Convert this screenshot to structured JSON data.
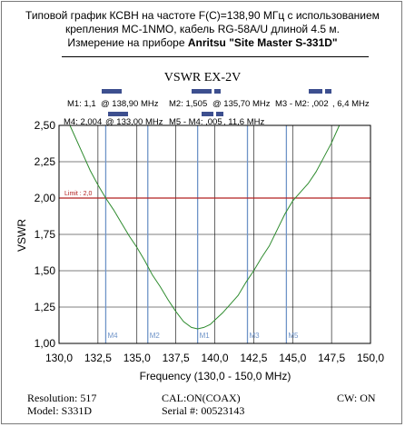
{
  "header": {
    "line1": "Типовой график КСВН на частоте F(C)=138,90 МГц с использованием",
    "line2": "крепления MC-1NMO, кабель RG-58A/U длиной 4.5 м.",
    "line3_prefix": "Измерение на приборе ",
    "line3_bold": "Anritsu \"Site Master S-331D\""
  },
  "markers_info": {
    "m1": "M1: 1,1",
    "m1_at": "@ 138,90 MHz",
    "m2": "M2: 1,505",
    "m2_at": "@ 135,70 MHz",
    "m3m2": "M3 - M2: ,002",
    "m3m2_val": ", 6,4 MHz",
    "m4": "M4: 2,004",
    "m4_at": "@ 133,00 MHz",
    "m5m4": "M5 - M4: ,005",
    "m5m4_val": ", 11,6 MHz"
  },
  "footer": {
    "resolution": "Resolution:  517",
    "model": "Model: S331D",
    "cal": "CAL:ON(COAX)",
    "serial": "Serial #: 00523143",
    "cw": "CW: ON"
  },
  "chart_data": {
    "type": "line",
    "title": "VSWR EX-2V",
    "xlabel": "Frequency (130,0 - 150,0 MHz)",
    "ylabel": "VSWR",
    "xlim": [
      130.0,
      150.0
    ],
    "ylim": [
      1.0,
      2.5
    ],
    "x_ticks": [
      130.0,
      132.5,
      135.0,
      137.5,
      140.0,
      142.5,
      145.0,
      147.5,
      150.0
    ],
    "x_tick_labels": [
      "130,0",
      "132,5",
      "135,0",
      "137,5",
      "140,0",
      "142,5",
      "145,0",
      "147,5",
      "150,0"
    ],
    "y_ticks": [
      1.0,
      1.25,
      1.5,
      1.75,
      2.0,
      2.25,
      2.5
    ],
    "y_tick_labels": [
      "1,00",
      "1,25",
      "1,50",
      "1,75",
      "2,00",
      "2,25",
      "2,50"
    ],
    "grid": true,
    "line_color": "#2e8b2e",
    "limit": {
      "value": 2.0,
      "label": "Limit : 2,0",
      "color": "#b22222"
    },
    "markers": [
      {
        "label": "M4",
        "x": 133.0
      },
      {
        "label": "M2",
        "x": 135.7
      },
      {
        "label": "M1",
        "x": 138.9
      },
      {
        "label": "M3",
        "x": 142.1
      },
      {
        "label": "M5",
        "x": 144.6
      }
    ],
    "marker_color": "#6f94c8",
    "series": [
      {
        "x": [
          130.7,
          131.5,
          132.0,
          132.5,
          133.0,
          133.5,
          134.0,
          134.5,
          135.0,
          135.5,
          136.0,
          136.5,
          137.0,
          137.5,
          138.0,
          138.5,
          138.9,
          139.3,
          139.7,
          140.0,
          140.5,
          141.0,
          141.5,
          142.0,
          142.5,
          143.0,
          143.5,
          144.0,
          144.5,
          145.0,
          145.5,
          146.0,
          146.5,
          147.0,
          147.5,
          148.0
        ],
        "y": [
          2.5,
          2.31,
          2.19,
          2.09,
          2.0,
          1.92,
          1.83,
          1.74,
          1.66,
          1.57,
          1.47,
          1.39,
          1.3,
          1.22,
          1.15,
          1.11,
          1.1,
          1.11,
          1.13,
          1.16,
          1.21,
          1.27,
          1.33,
          1.42,
          1.5,
          1.59,
          1.67,
          1.78,
          1.89,
          1.98,
          2.04,
          2.1,
          2.18,
          2.28,
          2.38,
          2.5
        ]
      }
    ]
  }
}
